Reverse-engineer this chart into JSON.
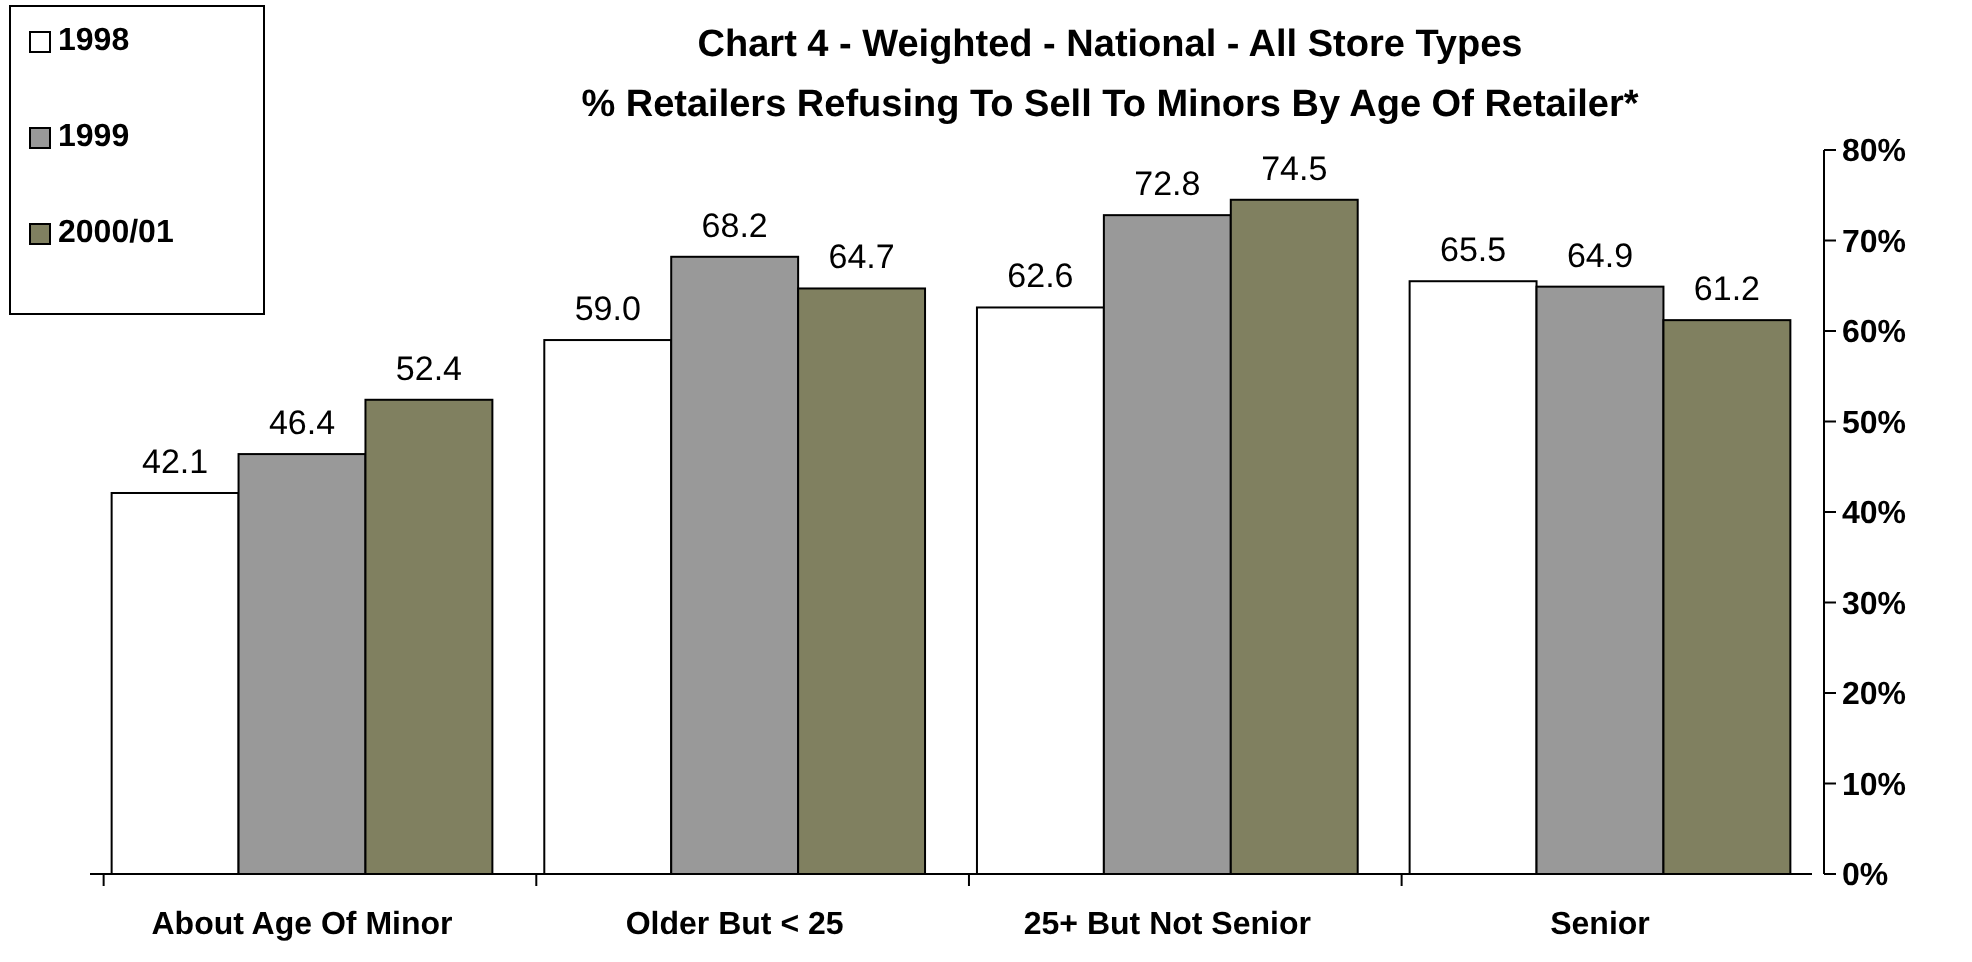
{
  "chart_data": {
    "type": "bar",
    "title": "Chart 4 - Weighted - National -  All Store Types",
    "subtitle": "% Retailers Refusing To Sell To Minors By Age Of Retailer*",
    "categories": [
      "About Age Of Minor",
      "Older But < 25",
      "25+ But Not Senior",
      "Senior"
    ],
    "series": [
      {
        "name": "1998",
        "color": "#ffffff",
        "values": [
          42.1,
          59.0,
          62.6,
          65.5
        ],
        "value_labels": [
          "42.1",
          "59.0",
          "62.6",
          "65.5"
        ]
      },
      {
        "name": "1999",
        "color": "#999999",
        "values": [
          46.4,
          68.2,
          72.8,
          64.9
        ],
        "value_labels": [
          "46.4",
          "68.2",
          "72.8",
          "64.9"
        ]
      },
      {
        "name": "2000/01",
        "color": "#808060",
        "values": [
          52.4,
          64.7,
          74.5,
          61.2
        ],
        "value_labels": [
          "52.4",
          "64.7",
          "74.5",
          "61.2"
        ]
      }
    ],
    "ylim": [
      0,
      80
    ],
    "yticks": [
      {
        "value": 0,
        "label": "0%"
      },
      {
        "value": 10,
        "label": "10%"
      },
      {
        "value": 20,
        "label": "20%"
      },
      {
        "value": 30,
        "label": "30%"
      },
      {
        "value": 40,
        "label": "40%"
      },
      {
        "value": 50,
        "label": "50%"
      },
      {
        "value": 60,
        "label": "60%"
      },
      {
        "value": 70,
        "label": "70%"
      },
      {
        "value": 80,
        "label": "80%"
      }
    ],
    "grid": false,
    "legend": "top left"
  }
}
